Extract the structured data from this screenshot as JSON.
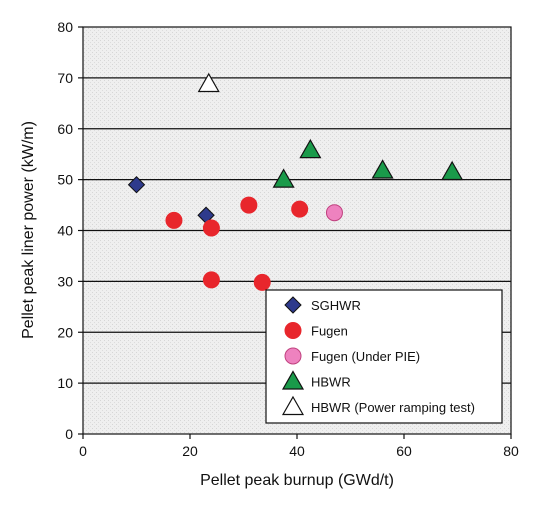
{
  "chart_data": {
    "type": "scatter",
    "title": "",
    "xlabel": "Pellet peak burnup (GWd/t)",
    "ylabel": "Pellet peak liner power (kW/m)",
    "xlim": [
      0,
      80
    ],
    "ylim": [
      0,
      80
    ],
    "xticks": [
      "0",
      "20",
      "40",
      "60",
      "80"
    ],
    "yticks": [
      "0",
      "10",
      "20",
      "30",
      "40",
      "50",
      "60",
      "70",
      "80"
    ],
    "grid": "horizontal",
    "legend_position": "bottom-right",
    "series": [
      {
        "name": "SGHWR",
        "marker": "diamond",
        "color": "#2e3a8c",
        "points": [
          [
            10,
            49
          ],
          [
            23,
            43
          ]
        ]
      },
      {
        "name": "Fugen",
        "marker": "circle",
        "color": "#e8262c",
        "points": [
          [
            17,
            42
          ],
          [
            24,
            40.5
          ],
          [
            31,
            45
          ],
          [
            40.5,
            44.2
          ],
          [
            24,
            30.3
          ],
          [
            33.5,
            29.8
          ]
        ]
      },
      {
        "name": "Fugen (Under PIE)",
        "marker": "circle",
        "color": "#ee82bf",
        "points": [
          [
            47,
            43.5
          ]
        ]
      },
      {
        "name": "HBWR",
        "marker": "triangle",
        "color": "#1a9a4a",
        "points": [
          [
            42.5,
            55.8
          ],
          [
            37.5,
            50
          ],
          [
            56,
            51.8
          ],
          [
            69,
            51.5
          ]
        ]
      },
      {
        "name": "HBWR (Power ramping test)",
        "marker": "triangle-open",
        "color": "#ffffff",
        "points": [
          [
            23.5,
            68.8
          ]
        ]
      }
    ]
  }
}
